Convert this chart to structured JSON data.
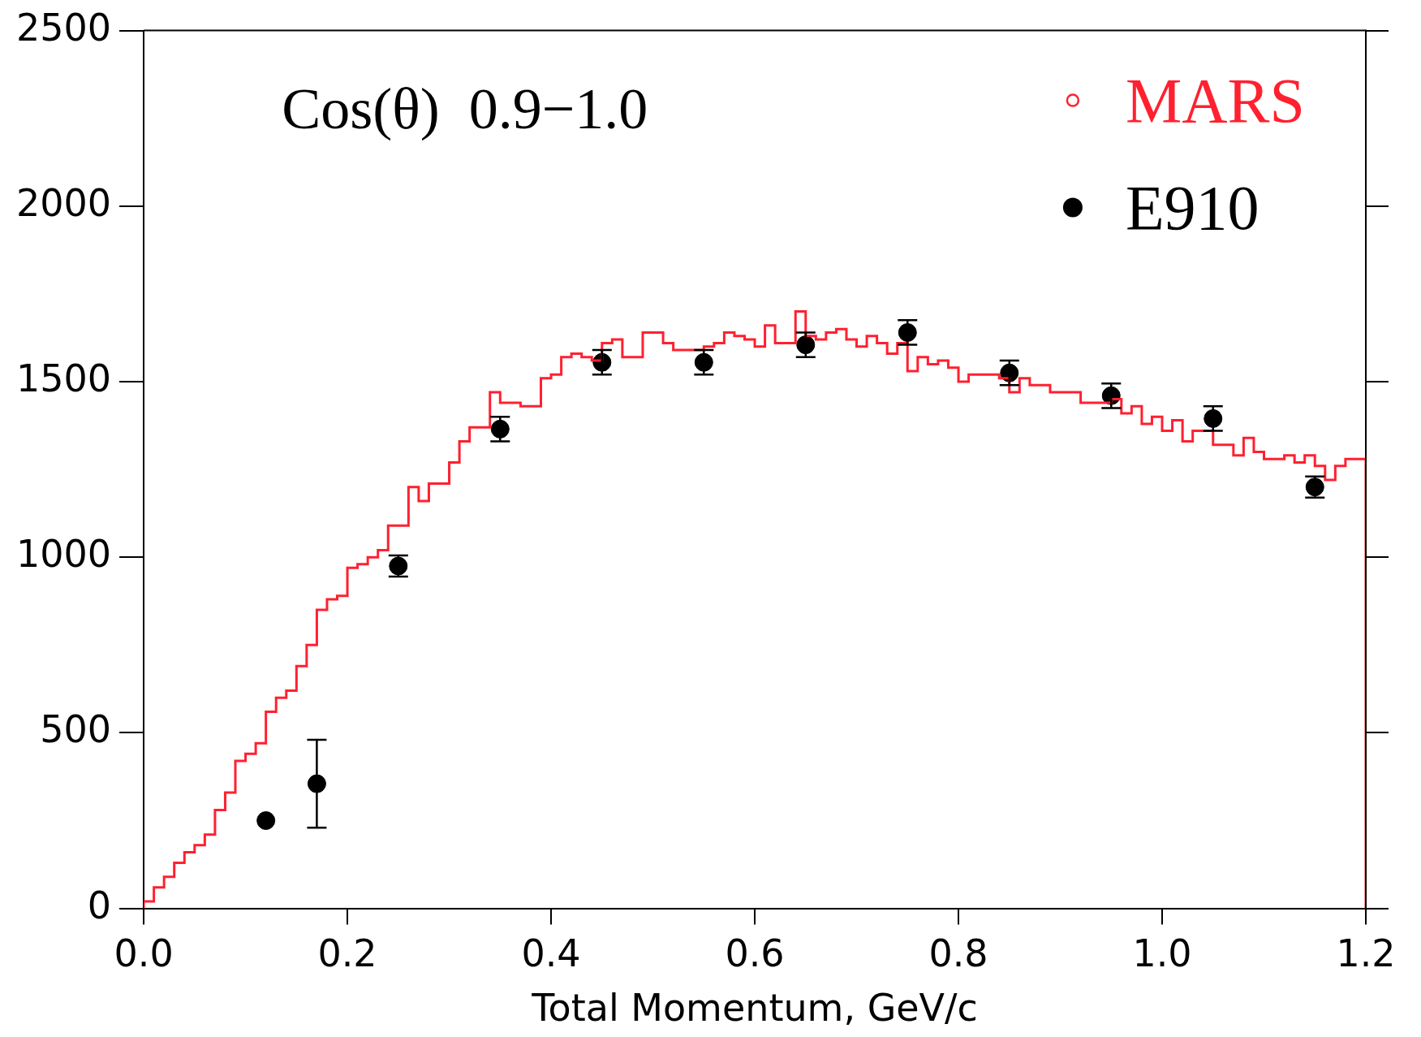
{
  "chart_data": {
    "type": "histogram",
    "title": "Cos(θ)  0.9−1.0",
    "xlabel": "Total Momentum, GeV/c",
    "xlim": [
      0,
      1.2
    ],
    "xticks": [
      {
        "value": 0,
        "label": "0.0"
      },
      {
        "value": 0.2,
        "label": "0.2"
      },
      {
        "value": 0.4,
        "label": "0.4"
      },
      {
        "value": 0.6,
        "label": "0.6"
      },
      {
        "value": 0.8,
        "label": "0.8"
      },
      {
        "value": 1.0,
        "label": "1.0"
      },
      {
        "value": 1.2,
        "label": "1.2"
      }
    ],
    "ylim": [
      0,
      2500
    ],
    "yticks": [
      0,
      500,
      1000,
      1500,
      2000,
      2500
    ],
    "legend": "top right",
    "marker": "circle",
    "series": [
      {
        "name": "MARS",
        "type": "histogram",
        "color": "#ff2030",
        "bins": [
          0,
          0.01,
          0.02,
          0.03,
          0.04,
          0.05,
          0.06,
          0.07,
          0.08,
          0.09,
          0.1,
          0.11,
          0.12,
          0.13,
          0.14,
          0.15,
          0.16,
          0.17,
          0.18,
          0.19,
          0.2,
          0.21,
          0.22,
          0.23,
          0.24,
          0.25,
          0.26,
          0.27,
          0.28,
          0.29,
          0.3,
          0.31,
          0.32,
          0.33,
          0.34,
          0.35,
          0.36,
          0.37,
          0.38,
          0.39,
          0.4,
          0.41,
          0.42,
          0.43,
          0.44,
          0.45,
          0.46,
          0.47,
          0.48,
          0.49,
          0.5,
          0.51,
          0.52,
          0.53,
          0.54,
          0.55,
          0.56,
          0.57,
          0.58,
          0.59,
          0.6,
          0.61,
          0.62,
          0.63,
          0.64,
          0.65,
          0.66,
          0.67,
          0.68,
          0.69,
          0.7,
          0.71,
          0.72,
          0.73,
          0.74,
          0.75,
          0.76,
          0.77,
          0.78,
          0.79,
          0.8,
          0.81,
          0.82,
          0.83,
          0.84,
          0.85,
          0.86,
          0.87,
          0.88,
          0.89,
          0.9,
          0.91,
          0.92,
          0.93,
          0.94,
          0.95,
          0.96,
          0.97,
          0.98,
          0.99,
          1.0,
          1.01,
          1.02,
          1.03,
          1.04,
          1.05,
          1.06,
          1.07,
          1.08,
          1.09,
          1.1,
          1.11,
          1.12,
          1.13,
          1.14,
          1.15,
          1.16,
          1.17,
          1.18,
          1.19,
          1.2
        ],
        "values": [
          0,
          20,
          60,
          90,
          130,
          160,
          180,
          210,
          280,
          330,
          420,
          440,
          470,
          560,
          600,
          620,
          690,
          750,
          850,
          880,
          890,
          970,
          980,
          1000,
          1020,
          1090,
          1090,
          1200,
          1160,
          1210,
          1210,
          1270,
          1330,
          1370,
          1370,
          1470,
          1440,
          1440,
          1430,
          1430,
          1510,
          1520,
          1570,
          1580,
          1570,
          1560,
          1610,
          1620,
          1570,
          1570,
          1640,
          1640,
          1610,
          1590,
          1590,
          1590,
          1600,
          1610,
          1640,
          1630,
          1620,
          1600,
          1660,
          1610,
          1610,
          1700,
          1630,
          1620,
          1640,
          1650,
          1620,
          1600,
          1630,
          1610,
          1580,
          1610,
          1530,
          1570,
          1550,
          1560,
          1540,
          1500,
          1520,
          1520,
          1520,
          1510,
          1470,
          1510,
          1490,
          1490,
          1470,
          1470,
          1470,
          1440,
          1440,
          1440,
          1450,
          1410,
          1430,
          1380,
          1400,
          1360,
          1390,
          1330,
          1360,
          1360,
          1320,
          1320,
          1290,
          1340,
          1300,
          1280,
          1280,
          1290,
          1270,
          1290,
          1260,
          1220,
          1260,
          1280
        ]
      },
      {
        "name": "E910",
        "type": "scatter",
        "color": "#000000",
        "x": [
          0.12,
          0.17,
          0.25,
          0.35,
          0.45,
          0.55,
          0.65,
          0.75,
          0.85,
          0.95,
          1.05,
          1.15
        ],
        "values": [
          250,
          355,
          975,
          1365,
          1555,
          1555,
          1605,
          1640,
          1525,
          1460,
          1395,
          1200
        ],
        "errors": [
          null,
          125,
          30,
          35,
          35,
          35,
          35,
          35,
          35,
          35,
          35,
          30
        ]
      }
    ]
  }
}
